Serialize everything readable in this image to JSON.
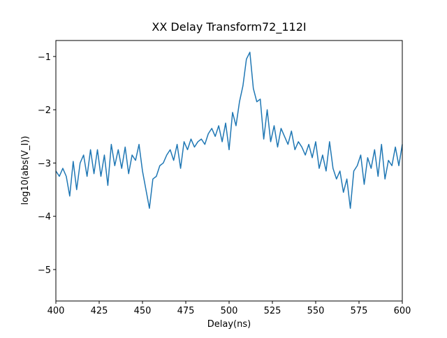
{
  "chart_data": {
    "type": "line",
    "title": "XX Delay Transform72_112I",
    "x_label": "Delay(ns)",
    "y_label": "log10(abs(V_I))",
    "color": "#1f77b4",
    "x": [
      400,
      402,
      404,
      406,
      408,
      410,
      412,
      414,
      416,
      418,
      420,
      422,
      424,
      426,
      428,
      430,
      432,
      434,
      436,
      438,
      440,
      442,
      444,
      446,
      448,
      450,
      452,
      454,
      456,
      458,
      460,
      462,
      464,
      466,
      468,
      470,
      472,
      474,
      476,
      478,
      480,
      482,
      484,
      486,
      488,
      490,
      492,
      494,
      496,
      498,
      500,
      502,
      504,
      506,
      508,
      510,
      512,
      514,
      516,
      518,
      520,
      522,
      524,
      526,
      528,
      530,
      532,
      534,
      536,
      538,
      540,
      542,
      544,
      546,
      548,
      550,
      552,
      554,
      556,
      558,
      560,
      562,
      564,
      566,
      568,
      570,
      572,
      574,
      576,
      578,
      580,
      582,
      584,
      586,
      588,
      590,
      592,
      594,
      596,
      598,
      600
    ],
    "values": [
      -3.15,
      -3.25,
      -3.1,
      -3.25,
      -3.62,
      -2.97,
      -3.5,
      -3.0,
      -2.85,
      -3.25,
      -2.75,
      -3.2,
      -2.75,
      -3.25,
      -2.85,
      -3.42,
      -2.65,
      -3.05,
      -2.75,
      -3.1,
      -2.7,
      -3.2,
      -2.85,
      -2.95,
      -2.65,
      -3.15,
      -3.5,
      -3.85,
      -3.3,
      -3.25,
      -3.05,
      -3.0,
      -2.85,
      -2.75,
      -2.95,
      -2.65,
      -3.1,
      -2.6,
      -2.75,
      -2.55,
      -2.7,
      -2.6,
      -2.55,
      -2.65,
      -2.45,
      -2.35,
      -2.5,
      -2.3,
      -2.6,
      -2.25,
      -2.75,
      -2.05,
      -2.3,
      -1.85,
      -1.55,
      -1.05,
      -0.92,
      -1.6,
      -1.85,
      -1.8,
      -2.55,
      -2.0,
      -2.6,
      -2.3,
      -2.7,
      -2.35,
      -2.5,
      -2.65,
      -2.4,
      -2.75,
      -2.6,
      -2.7,
      -2.85,
      -2.65,
      -2.9,
      -2.6,
      -3.1,
      -2.85,
      -3.15,
      -2.6,
      -3.1,
      -3.3,
      -3.15,
      -3.55,
      -3.3,
      -3.85,
      -3.15,
      -3.05,
      -2.85,
      -3.4,
      -2.9,
      -3.1,
      -2.75,
      -3.25,
      -2.65,
      -3.3,
      -2.95,
      -3.05,
      -2.7,
      -3.05,
      -2.65
    ],
    "xlim": [
      400,
      600
    ],
    "xticks": [
      400,
      425,
      450,
      475,
      500,
      525,
      550,
      575,
      600
    ],
    "ylim": [
      -5.59,
      -0.7
    ],
    "yticks": [
      {
        "value": -5,
        "label": "−5"
      },
      {
        "value": -4,
        "label": "−4"
      },
      {
        "value": -3,
        "label": "−3"
      },
      {
        "value": -2,
        "label": "−2"
      },
      {
        "value": -1,
        "label": "−1"
      }
    ]
  }
}
